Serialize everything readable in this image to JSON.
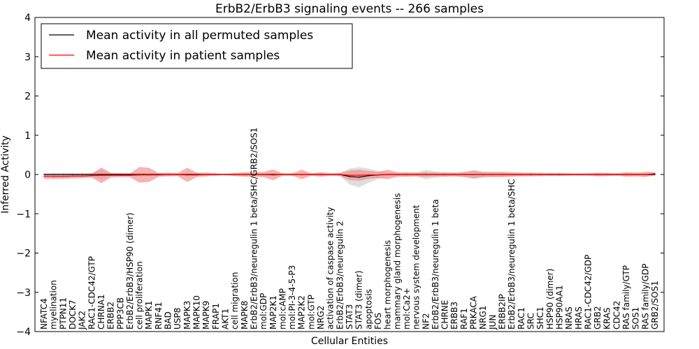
{
  "chart_data": {
    "type": "line",
    "title": "ErbB2/ErbB3 signaling events -- 266 samples",
    "xlabel": "Cellular Entities",
    "ylabel": "Inferred Activity",
    "ylim": [
      -4,
      4
    ],
    "yticks": [
      -4,
      -3,
      -2,
      -1,
      0,
      1,
      2,
      3,
      4
    ],
    "ytick_labels": [
      "−4",
      "−3",
      "−2",
      "−1",
      "0",
      "1",
      "2",
      "3",
      "4"
    ],
    "legend": {
      "position": "top-left",
      "entries": [
        {
          "label": "Mean activity in all permuted samples",
          "color": "#000000"
        },
        {
          "label": "Mean activity in patient samples",
          "color": "#ff0000"
        }
      ]
    },
    "colors": {
      "patient_line": "#ff0000",
      "patient_band": "#f08080",
      "permuted_line": "#000000",
      "permuted_band": "#c8c8c8"
    },
    "categories": [
      "NFATC4",
      "myelination",
      "PTPN11",
      "DOCK7",
      "JAK2",
      "RAC1-CDC42/GTP",
      "CHRNA1",
      "ERBB2",
      "PPP3CB",
      "ErbB2/ErbB3/HSP90 (dimer)",
      "cell proliferation",
      "MAPK1",
      "RNF41",
      "BAD",
      "USP8",
      "MAPK3",
      "MAPK10",
      "MAPK9",
      "FRAP1",
      "AKT1",
      "cell migration",
      "MAPK8",
      "ErbB2/ErbB3/neuregulin 1 beta/SHC/GRB2/SOS1",
      "mol:GDP",
      "MAP2K1",
      "mol:cAMP",
      "mol:PI-3-4-5-P3",
      "MAP2K2",
      "mol:GTP",
      "NRG2",
      "activation of caspase activity",
      "ErbB2/ErbB3/neuregulin 2",
      "STAT3",
      "STAT3 (dimer)",
      "apoptosis",
      "FOS",
      "heart morphogenesis",
      "mammary gland morphogenesis",
      "mol:Ca2+",
      "nervous system development",
      "NF2",
      "ErbB2/ErbB3/neuregulin 1 beta",
      "CHRNE",
      "ERBB3",
      "RAF1",
      "PRKACA",
      "NRG1",
      "JUN",
      "ERBB2IP",
      "ErbB2/ErbB3/neuregulin 1 beta/SHC",
      "RAC1",
      "SRC",
      "SHC1",
      "HSP90 (dimer)",
      "HSP90AA1",
      "NRAS",
      "HRAS",
      "RAC1-CDC42/GDP",
      "GRB2",
      "KRAS",
      "CDC42",
      "RAS family/GTP",
      "SOS1",
      "RAS family/GDP",
      "GRB2/SOS1"
    ],
    "series": [
      {
        "name": "Mean activity in patient samples",
        "values": [
          -0.05,
          -0.05,
          -0.05,
          -0.04,
          -0.04,
          -0.03,
          -0.02,
          -0.02,
          -0.02,
          -0.02,
          -0.01,
          -0.01,
          -0.01,
          0,
          0,
          -0.01,
          -0.01,
          0,
          0,
          0,
          0,
          0,
          0,
          0,
          -0.01,
          0,
          0,
          0,
          0,
          0,
          0,
          0,
          -0.02,
          -0.02,
          -0.01,
          -0.01,
          0,
          0,
          0,
          0,
          0,
          0,
          0,
          0,
          0,
          0,
          0,
          0,
          0,
          0,
          0,
          0,
          0,
          0,
          0,
          0,
          0,
          0,
          0,
          0,
          0,
          0,
          0,
          0,
          0.02
        ],
        "spread": [
          0.06,
          0.06,
          0.06,
          0.06,
          0.05,
          0.05,
          0.2,
          0.06,
          0.05,
          0.05,
          0.2,
          0.18,
          0.05,
          0.05,
          0.04,
          0.18,
          0.06,
          0.05,
          0.03,
          0.02,
          0.04,
          0.06,
          0.06,
          0.07,
          0.14,
          0.03,
          0.03,
          0.12,
          0.03,
          0.06,
          0.03,
          0.04,
          0.12,
          0.14,
          0.1,
          0.08,
          0.12,
          0.06,
          0.06,
          0.05,
          0.06,
          0.05,
          0.06,
          0.05,
          0.07,
          0.09,
          0.06,
          0.07,
          0.07,
          0.06,
          0.05,
          0.05,
          0.04,
          0.04,
          0.04,
          0.03,
          0.03,
          0.03,
          0.05,
          0.04,
          0.03,
          0.06,
          0.05,
          0.07,
          0.04
        ]
      },
      {
        "name": "Mean activity in all permuted samples",
        "values": [
          0,
          0,
          0,
          0,
          0,
          0,
          0,
          0,
          0,
          0,
          0,
          0,
          0,
          0,
          0,
          0,
          0,
          0,
          0,
          0,
          0,
          0,
          0,
          0,
          0,
          0,
          0,
          0,
          0,
          0,
          0,
          0,
          -0.05,
          -0.07,
          -0.03,
          -0.01,
          0,
          0,
          0,
          0,
          0,
          0,
          0,
          0,
          0,
          0,
          0,
          0,
          0,
          0,
          0,
          0,
          0,
          0,
          0,
          0,
          0,
          0,
          0,
          0,
          0,
          0,
          0,
          0,
          0
        ],
        "spread": [
          0.04,
          0.04,
          0.04,
          0.04,
          0.04,
          0.04,
          0.12,
          0.04,
          0.03,
          0.03,
          0.05,
          0.04,
          0.03,
          0.03,
          0.03,
          0.04,
          0.03,
          0.03,
          0.02,
          0.02,
          0.02,
          0.03,
          0.03,
          0.03,
          0.04,
          0.02,
          0.02,
          0.03,
          0.02,
          0.03,
          0.02,
          0.04,
          0.2,
          0.26,
          0.18,
          0.1,
          0.05,
          0.04,
          0.04,
          0.05,
          0.12,
          0.08,
          0.04,
          0.04,
          0.05,
          0.12,
          0.08,
          0.05,
          0.05,
          0.03,
          0.03,
          0.03,
          0.03,
          0.03,
          0.03,
          0.02,
          0.02,
          0.02,
          0.03,
          0.03,
          0.02,
          0.03,
          0.03,
          0.03,
          0.02
        ]
      }
    ]
  }
}
